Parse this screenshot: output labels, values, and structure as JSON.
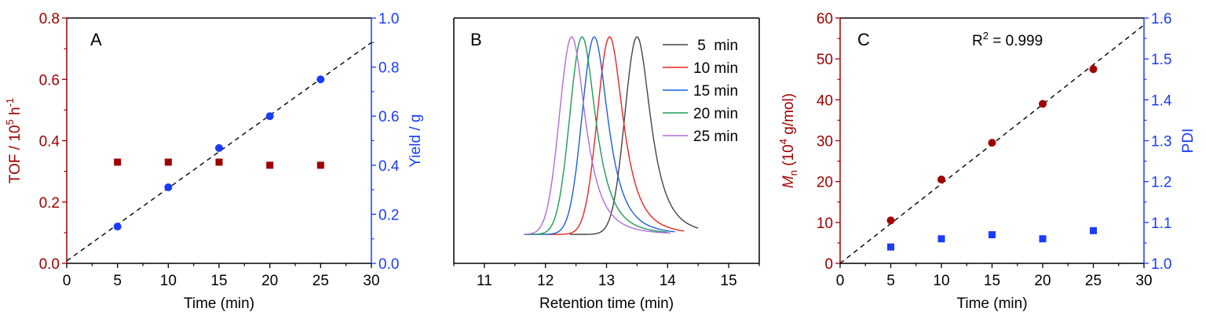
{
  "colors": {
    "red": "#a00000",
    "blue": "#1a3cff",
    "black": "#000000"
  },
  "chart_data": [
    {
      "type": "scatter",
      "panel_label": "A",
      "xlabel": "Time (min)",
      "ylabel_left": {
        "base": "TOF / 10",
        "sup": "5",
        "mid": " h",
        "sup2": "-1"
      },
      "ylabel_right": "Yield / g",
      "xlim": [
        0,
        30
      ],
      "ylim_left": [
        0,
        0.8
      ],
      "ylim_right": [
        0,
        1.0
      ],
      "xticks": [
        "0",
        "5",
        "10",
        "15",
        "20",
        "25",
        "30"
      ],
      "yticks_left": [
        "0.0",
        "0.2",
        "0.4",
        "0.6",
        "0.8"
      ],
      "yticks_right": [
        "0.0",
        "0.2",
        "0.4",
        "0.6",
        "0.8",
        "1.0"
      ],
      "x": [
        5,
        10,
        15,
        20,
        25
      ],
      "series": [
        {
          "axis": "left",
          "marker": "square",
          "color": "#a00000",
          "values": [
            0.33,
            0.33,
            0.33,
            0.32,
            0.32
          ]
        },
        {
          "axis": "right",
          "marker": "circle",
          "color": "#1a3cff",
          "values": [
            0.15,
            0.31,
            0.47,
            0.6,
            0.75
          ]
        }
      ],
      "fit_line": {
        "axis": "right",
        "points": [
          [
            0,
            0.01
          ],
          [
            30,
            0.9
          ]
        ]
      }
    },
    {
      "type": "line",
      "panel_label": "B",
      "xlabel": "Retention time (min)",
      "xlim": [
        10.5,
        15.5
      ],
      "xticks": [
        "11",
        "12",
        "13",
        "14",
        "15"
      ],
      "legend_position": "top-right",
      "series": [
        {
          "name": " 5  min",
          "color": "#444444",
          "peak": 13.5,
          "range": [
            12.4,
            14.5
          ]
        },
        {
          "name": "10 min",
          "color": "#ee2222",
          "peak": 13.05,
          "range": [
            12.0,
            14.27
          ]
        },
        {
          "name": "15 min",
          "color": "#1a5fe0",
          "peak": 12.8,
          "range": [
            11.65,
            14.12
          ]
        },
        {
          "name": "20 min",
          "color": "#1f9a55",
          "peak": 12.6,
          "range": [
            11.65,
            14.0
          ]
        },
        {
          "name": "25 min",
          "color": "#b06be0",
          "peak": 12.43,
          "range": [
            11.65,
            14.05
          ]
        }
      ]
    },
    {
      "type": "scatter",
      "panel_label": "C",
      "annotation": {
        "base": "R",
        "sup": "2",
        "rest": " = 0.999"
      },
      "xlabel": "Time (min)",
      "ylabel_left": {
        "ital": "M",
        "sub": "n",
        "base": " (10",
        "sup": "4",
        "rest": " g/mol)"
      },
      "ylabel_right": "PDI",
      "xlim": [
        0,
        30
      ],
      "ylim_left": [
        0,
        60
      ],
      "ylim_right": [
        1.0,
        1.6
      ],
      "xticks": [
        "0",
        "5",
        "10",
        "15",
        "20",
        "25",
        "30"
      ],
      "yticks_left": [
        "0",
        "10",
        "20",
        "30",
        "40",
        "50",
        "60"
      ],
      "yticks_right": [
        "1.0",
        "1.1",
        "1.2",
        "1.3",
        "1.4",
        "1.5",
        "1.6"
      ],
      "x": [
        5,
        10,
        15,
        20,
        25
      ],
      "series": [
        {
          "axis": "left",
          "marker": "circle",
          "color": "#a00000",
          "values": [
            10.5,
            20.5,
            29.5,
            39,
            47.5
          ]
        },
        {
          "axis": "right",
          "marker": "square",
          "color": "#1a3cff",
          "values": [
            1.04,
            1.06,
            1.07,
            1.06,
            1.08
          ]
        }
      ],
      "fit_line": {
        "axis": "left",
        "points": [
          [
            0,
            0
          ],
          [
            30,
            58.3
          ]
        ]
      }
    }
  ]
}
